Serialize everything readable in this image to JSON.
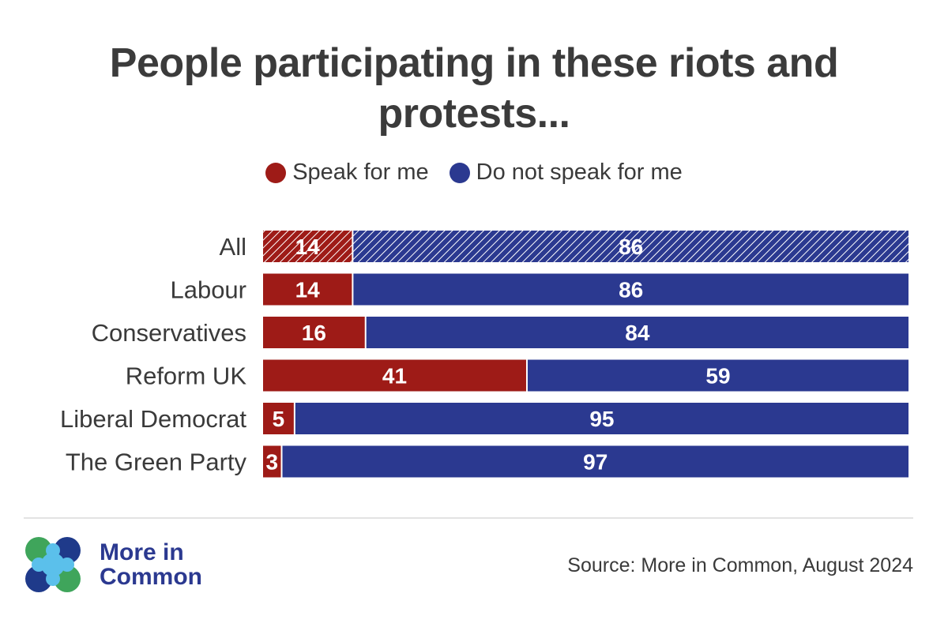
{
  "chart_data": {
    "type": "bar",
    "orientation": "horizontal",
    "stacked": true,
    "title": "People participating in these riots and protests...",
    "categories": [
      "All",
      "Labour",
      "Conservatives",
      "Reform UK",
      "Liberal Democrat",
      "The Green Party"
    ],
    "series": [
      {
        "name": "Speak for me",
        "color": "#9e1b17",
        "values": [
          14,
          14,
          16,
          41,
          5,
          3
        ]
      },
      {
        "name": "Do not speak for me",
        "color": "#2b3990",
        "values": [
          86,
          86,
          84,
          59,
          95,
          97
        ]
      }
    ],
    "hatched_categories": [
      "All"
    ],
    "xlim": [
      0,
      100
    ],
    "grid": false,
    "legend_position": "top-center",
    "data_labels": true
  },
  "legend": {
    "items": [
      {
        "label": "Speak for me",
        "color": "#9e1b17"
      },
      {
        "label": "Do not speak for me",
        "color": "#2b3990"
      }
    ]
  },
  "footer": {
    "brand_line1": "More in",
    "brand_line2": "Common",
    "logo_icon": "four-circles-logo-icon",
    "source": "Source: More in Common, August 2024"
  },
  "colors": {
    "red": "#9e1b17",
    "blue": "#2b3990",
    "logo_navy": "#1f3a8a",
    "logo_green": "#3fa55b",
    "logo_light_blue": "#5bc0eb"
  }
}
